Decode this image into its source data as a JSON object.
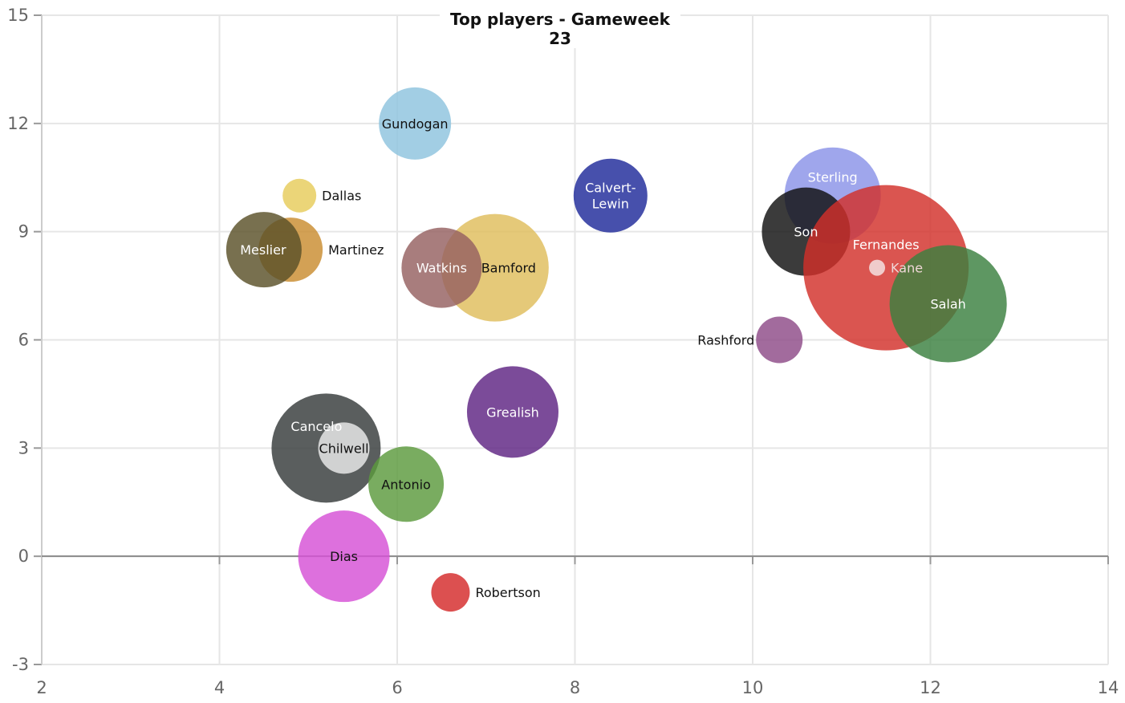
{
  "chart_data": {
    "type": "bubble",
    "title": "Top players - Gameweek 23",
    "xlabel": "",
    "ylabel": "",
    "xlim": [
      2,
      14
    ],
    "ylim": [
      -3,
      15
    ],
    "x_ticks": [
      2,
      4,
      6,
      8,
      10,
      12,
      14
    ],
    "y_ticks": [
      -3,
      0,
      3,
      6,
      9,
      12,
      15
    ],
    "grid": true,
    "legend": "none",
    "points": [
      {
        "name": "Gundogan",
        "x": 6.2,
        "y": 12,
        "size": 4.5,
        "color": "#8ec3de",
        "label_color": "#111111",
        "label_pos": "center"
      },
      {
        "name": "Dallas",
        "x": 4.9,
        "y": 10,
        "size": 2.1,
        "color": "#e6cc5a",
        "label_color": "#111111",
        "label_pos": "right"
      },
      {
        "name": "Martinez",
        "x": 4.8,
        "y": 8.5,
        "size": 4.0,
        "color": "#c98c30",
        "label_color": "#111111",
        "label_pos": "right"
      },
      {
        "name": "Meslier",
        "x": 4.5,
        "y": 8.5,
        "size": 4.7,
        "color": "#5a5128",
        "label_color": "#ffffff",
        "label_pos": "center"
      },
      {
        "name": "Bamford",
        "x": 7.1,
        "y": 8,
        "size": 6.7,
        "color": "#dfbd5c",
        "label_color": "#111111",
        "label_pos": "center"
      },
      {
        "name": "Watkins",
        "x": 6.5,
        "y": 8,
        "size": 5.0,
        "color": "#956060",
        "label_color": "#ffffff",
        "label_pos": "center"
      },
      {
        "name": "Calvert-\nLewin",
        "x": 8.4,
        "y": 10,
        "size": 4.6,
        "color": "#1f2a9a",
        "label_color": "#ffffff",
        "label_pos": "center"
      },
      {
        "name": "Sterling",
        "x": 10.9,
        "y": 10,
        "size": 6.0,
        "color": "#8a92e8",
        "label_color": "#ffffff",
        "label_pos": "top"
      },
      {
        "name": "Son",
        "x": 10.6,
        "y": 9,
        "size": 5.5,
        "color": "#101010",
        "label_color": "#ffffff",
        "label_pos": "center"
      },
      {
        "name": "Fernandes",
        "x": 11.5,
        "y": 8,
        "size": 10.3,
        "color": "#d22f2a",
        "label_color": "#ffffff",
        "label_pos": "top"
      },
      {
        "name": "Kane",
        "x": 11.4,
        "y": 8,
        "size": 1.0,
        "color": "#f4e6e6",
        "label_color": "#f0d8d8",
        "label_pos": "right"
      },
      {
        "name": "Salah",
        "x": 12.2,
        "y": 7,
        "size": 7.3,
        "color": "#3a8040",
        "label_color": "#ffffff",
        "label_pos": "center"
      },
      {
        "name": "Rashford",
        "x": 10.3,
        "y": 6,
        "size": 2.9,
        "color": "#8e4a88",
        "label_color": "#111111",
        "label_pos": "left"
      },
      {
        "name": "Grealish",
        "x": 7.3,
        "y": 4,
        "size": 5.7,
        "color": "#5e2383",
        "label_color": "#ffffff",
        "label_pos": "center"
      },
      {
        "name": "Cancelo",
        "x": 5.2,
        "y": 3,
        "size": 6.8,
        "color": "#363a3b",
        "label_color": "#ffffff",
        "label_pos": "top"
      },
      {
        "name": "Chilwell",
        "x": 5.4,
        "y": 3,
        "size": 3.2,
        "color": "#ececec",
        "label_color": "#111111",
        "label_pos": "center"
      },
      {
        "name": "Antonio",
        "x": 6.1,
        "y": 2,
        "size": 4.7,
        "color": "#5c9a3d",
        "label_color": "#111111",
        "label_pos": "center"
      },
      {
        "name": "Dias",
        "x": 5.4,
        "y": 0,
        "size": 5.7,
        "color": "#d650d6",
        "label_color": "#111111",
        "label_pos": "center"
      },
      {
        "name": "Robertson",
        "x": 6.6,
        "y": -1,
        "size": 2.4,
        "color": "#d42a2a",
        "label_color": "#111111",
        "label_pos": "right"
      }
    ]
  }
}
